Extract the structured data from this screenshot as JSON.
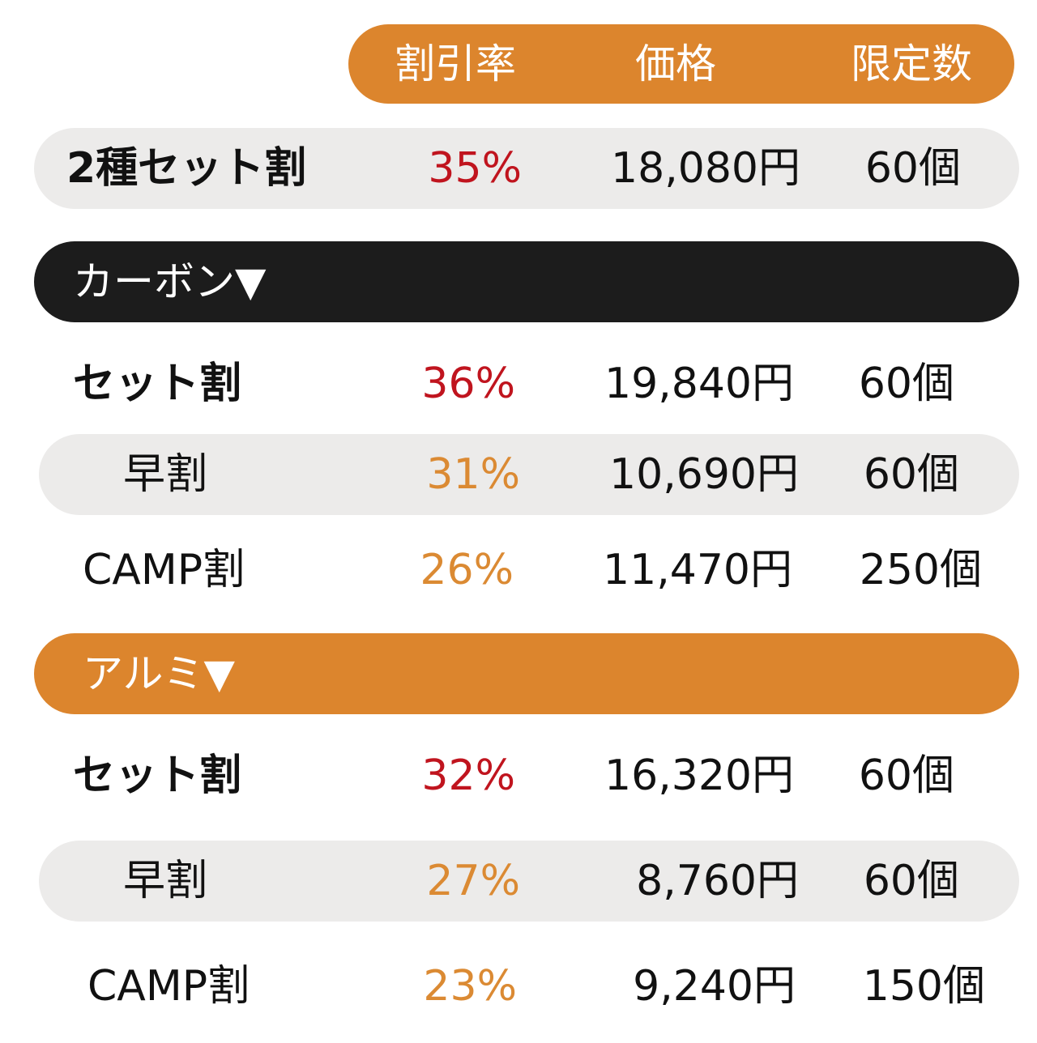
{
  "header": {
    "col_rate": "割引率",
    "col_price": "価格",
    "col_limit": "限定数"
  },
  "combo": {
    "label": "2種セット割",
    "rate": "35%",
    "price": "18,080円",
    "limit": "60個"
  },
  "sections": [
    {
      "title": "カーボン▼",
      "rows": [
        {
          "label": "セット割",
          "rate": "36%",
          "price": "19,840円",
          "limit": "60個"
        },
        {
          "label": "早割",
          "rate": "31%",
          "price": "10,690円",
          "limit": "60個"
        },
        {
          "label": "CAMP割",
          "rate": "26%",
          "price": "11,470円",
          "limit": "250個"
        }
      ]
    },
    {
      "title": "アルミ▼",
      "rows": [
        {
          "label": "セット割",
          "rate": "32%",
          "price": "16,320円",
          "limit": "60個"
        },
        {
          "label": "早割",
          "rate": "27%",
          "price": "8,760円",
          "limit": "60個"
        },
        {
          "label": "CAMP割",
          "rate": "23%",
          "price": "9,240円",
          "limit": "150個"
        }
      ]
    }
  ],
  "colors": {
    "accent_orange": "#dc852d",
    "dark_bar": "#1c1c1c",
    "row_shade": "#ecebea",
    "rate_red": "#c0141e",
    "rate_orange": "#db8a33"
  }
}
